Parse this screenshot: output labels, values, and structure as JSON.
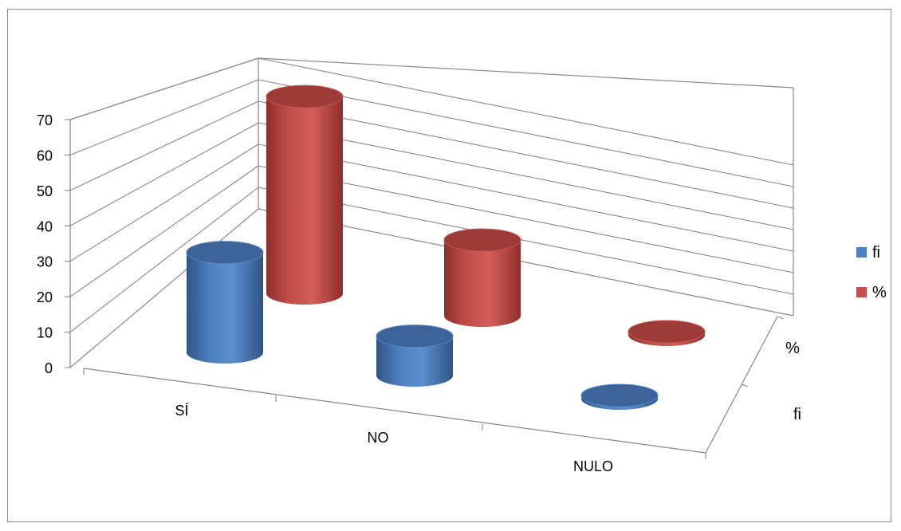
{
  "chart_data": {
    "type": "bar",
    "style": "3d-cylinder",
    "categories": [
      "SÍ",
      "NO",
      "NULO"
    ],
    "series": [
      {
        "name": "fi",
        "values": [
          33,
          13,
          1
        ],
        "color": "#4f81bd"
      },
      {
        "name": "%",
        "values": [
          65,
          25,
          1
        ],
        "color": "#c0504d"
      }
    ],
    "yticks": [
      "0",
      "10",
      "20",
      "30",
      "40",
      "50",
      "60",
      "70"
    ],
    "ylim": [
      0,
      70
    ],
    "depth_labels": [
      "fi",
      "%"
    ],
    "grid": true,
    "legend_position": "right"
  }
}
